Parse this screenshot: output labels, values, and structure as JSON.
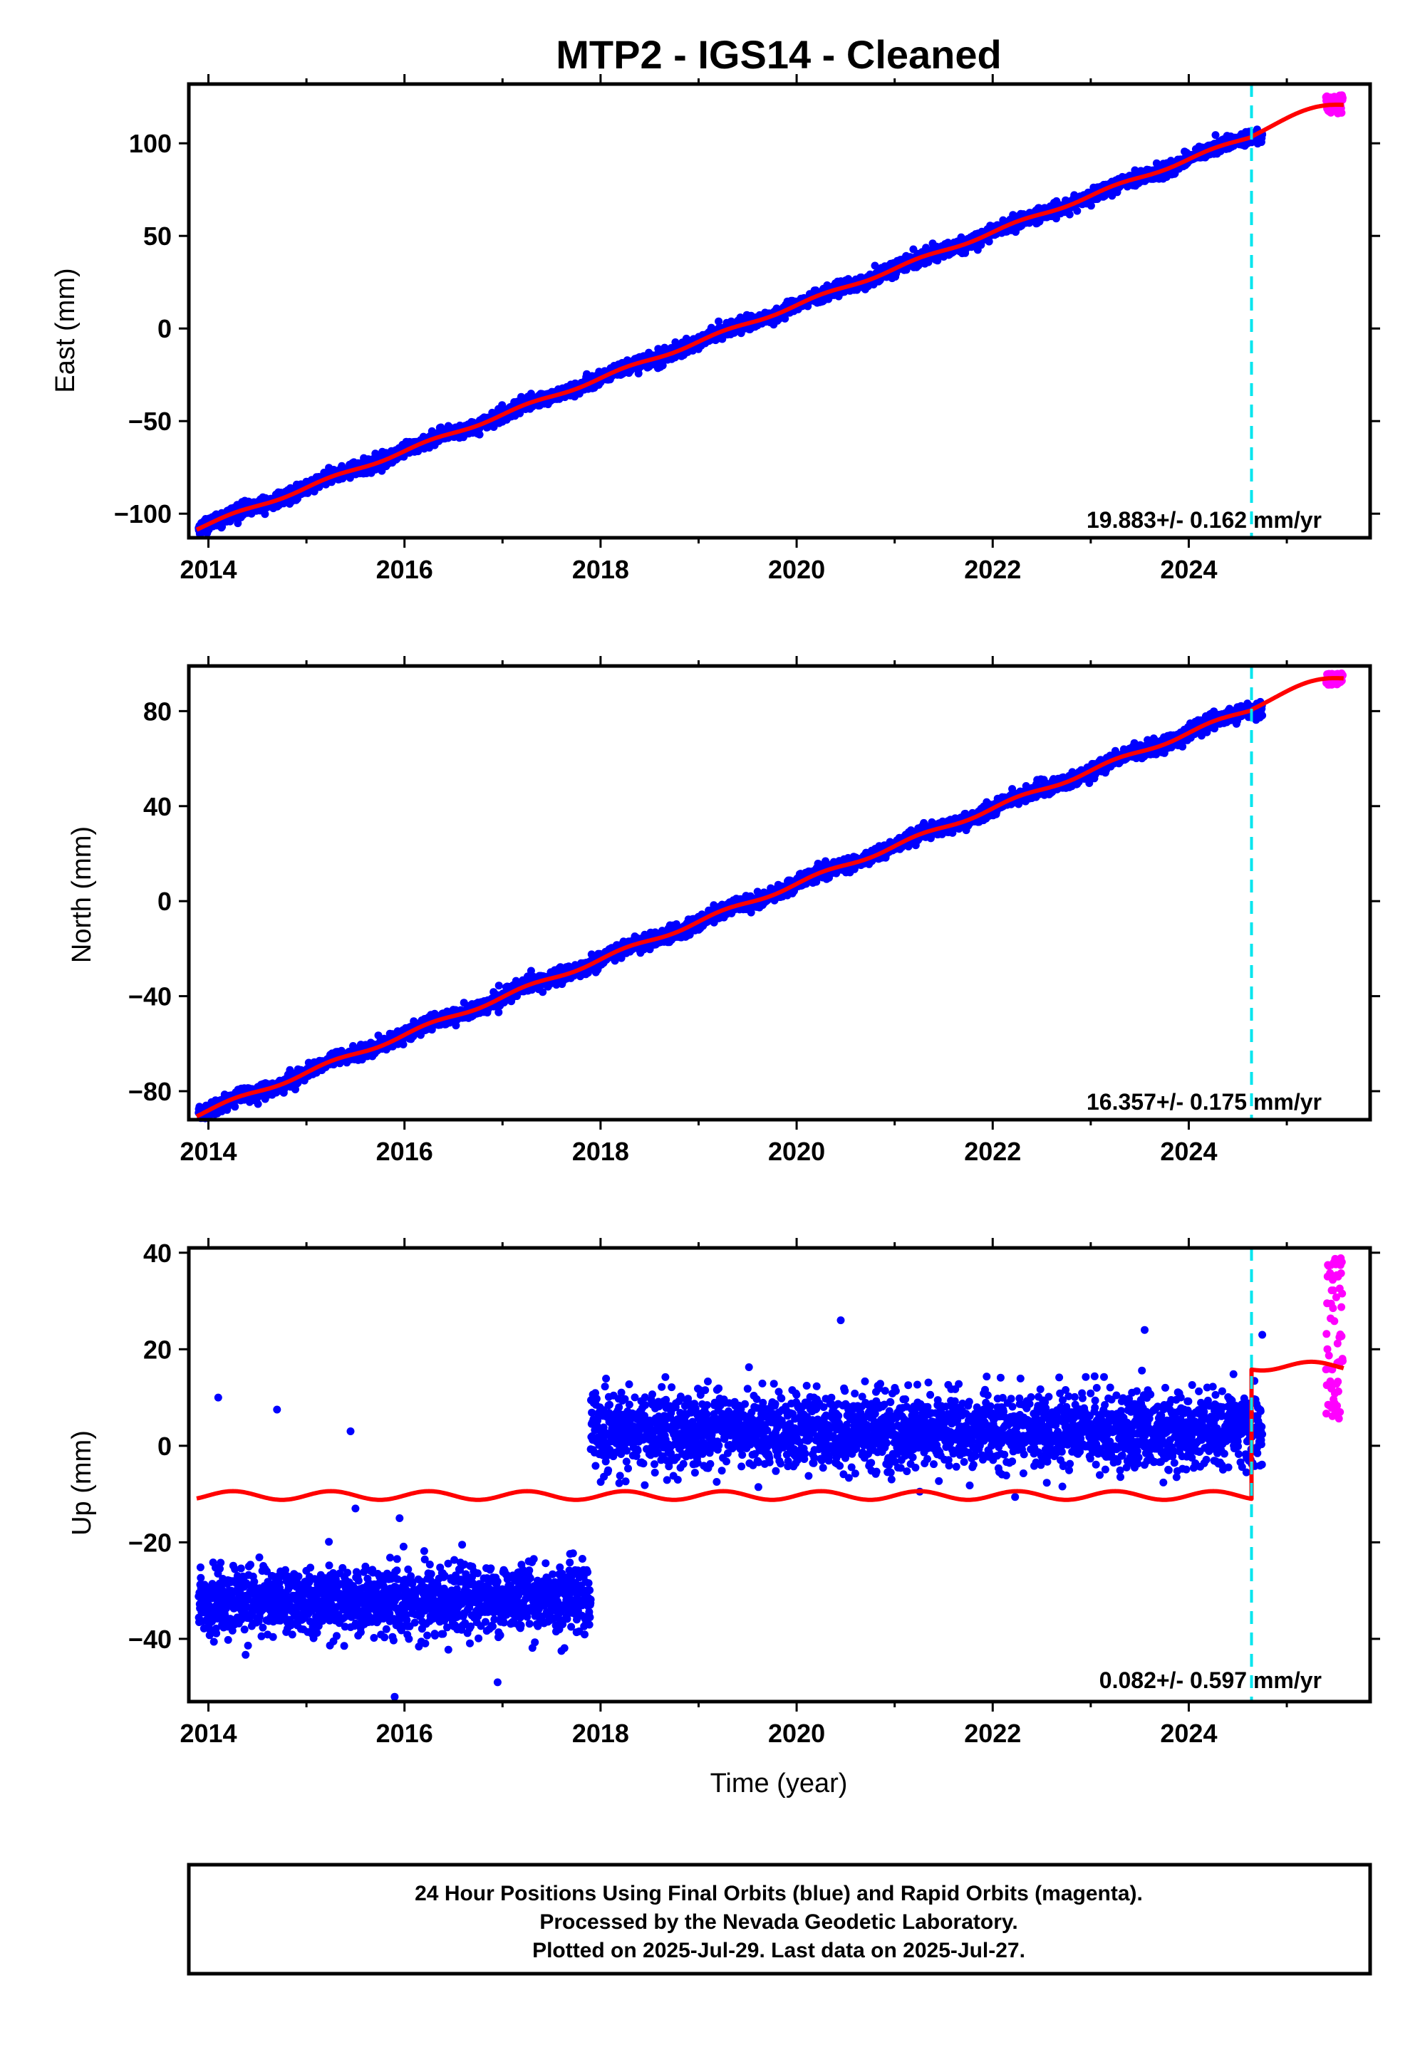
{
  "title": "MTP2  - IGS14 - Cleaned",
  "footer": {
    "lines": [
      "24 Hour Positions Using Final Orbits (blue) and Rapid Orbits (magenta).",
      "Processed by the Nevada Geodetic Laboratory.",
      "Plotted on 2025-Jul-29. Last data on 2025-Jul-27."
    ]
  },
  "colors": {
    "final_orbits": "#0000ff",
    "rapid_orbits": "#ff00ff",
    "model": "#ff0000",
    "equipment_change": "#00e5ee"
  },
  "chart_data": [
    {
      "type": "scatter",
      "component": "East",
      "ylabel": "East (mm)",
      "xlabel": "",
      "xlim": [
        2013.8,
        2025.85
      ],
      "ylim": [
        -113,
        132
      ],
      "xticks": [
        "2014",
        "2016",
        "2018",
        "2020",
        "2022",
        "2024"
      ],
      "yticks": [
        "−100",
        "−50",
        "0",
        "50",
        "100"
      ],
      "ytick_values": [
        -100,
        -50,
        0,
        50,
        100
      ],
      "rate_text": "19.883+/- 0.162 mm/yr",
      "trend": {
        "start": [
          2013.88,
          -108
        ],
        "break_epoch": 2024.64,
        "break_value": 104,
        "end": [
          2025.58,
          121
        ]
      },
      "noise_sd_mm": 1.8,
      "rapid_range_mm": [
        116,
        126
      ],
      "equipment_change_epoch": 2024.64,
      "series": [
        {
          "values": "daily positions, 2013.9–2024.75 (final orbits)"
        },
        {
          "values": "daily positions, 2025.4–2025.57 (rapid orbits)"
        },
        {
          "values": "model fit"
        }
      ]
    },
    {
      "type": "scatter",
      "component": "North",
      "ylabel": "North (mm)",
      "xlabel": "",
      "xlim": [
        2013.8,
        2025.85
      ],
      "ylim": [
        -92,
        99
      ],
      "xticks": [
        "2014",
        "2016",
        "2018",
        "2020",
        "2022",
        "2024"
      ],
      "yticks": [
        "−80",
        "−40",
        "0",
        "40",
        "80"
      ],
      "ytick_values": [
        -80,
        -40,
        0,
        40,
        80
      ],
      "rate_text": "16.357+/- 0.175 mm/yr",
      "trend": {
        "start": [
          2013.88,
          -90
        ],
        "break_epoch": 2024.64,
        "break_value": 81,
        "end": [
          2025.58,
          94
        ]
      },
      "noise_sd_mm": 1.5,
      "rapid_range_mm": [
        91,
        96
      ],
      "equipment_change_epoch": 2024.64,
      "series": [
        {
          "values": "daily positions, 2013.9–2024.75 (final orbits)"
        },
        {
          "values": "daily positions, 2025.4–2025.57 (rapid orbits)"
        },
        {
          "values": "model fit"
        }
      ]
    },
    {
      "type": "scatter",
      "component": "Up",
      "ylabel": "Up (mm)",
      "xlabel": "Time (year)",
      "xlim": [
        2013.8,
        2025.85
      ],
      "ylim": [
        -53,
        41
      ],
      "xticks": [
        "2014",
        "2016",
        "2018",
        "2020",
        "2022",
        "2024"
      ],
      "yticks": [
        "−40",
        "−20",
        "0",
        "20",
        "40"
      ],
      "ytick_values": [
        -40,
        -20,
        0,
        20,
        40
      ],
      "rate_text": "0.082+/- 0.597 mm/yr",
      "segments": [
        {
          "from": 2013.9,
          "to": 2017.9,
          "mean_mm": -32,
          "sd_mm": 3.5
        },
        {
          "from": 2017.9,
          "to": 2024.75,
          "mean_mm": 3,
          "sd_mm": 4
        }
      ],
      "outliers": [
        [
          2014.1,
          10
        ],
        [
          2014.7,
          7.5
        ],
        [
          2015.45,
          3
        ],
        [
          2015.5,
          -13
        ],
        [
          2015.95,
          -15
        ],
        [
          2015.9,
          -52
        ],
        [
          2016.95,
          -49
        ],
        [
          2020.45,
          26
        ],
        [
          2023.55,
          24
        ],
        [
          2024.75,
          23
        ]
      ],
      "model": {
        "level_before": -10.3,
        "amplitude": 0.9,
        "level_after": 16.5,
        "break_epoch": 2024.64
      },
      "rapid_range_mm": [
        5,
        39
      ],
      "equipment_change_epoch": 2024.64,
      "series": [
        {
          "values": "daily positions, 2013.9–2024.75 (final orbits)"
        },
        {
          "values": "daily positions, 2025.4–2025.57 (rapid orbits)"
        },
        {
          "values": "model fit"
        }
      ]
    }
  ]
}
